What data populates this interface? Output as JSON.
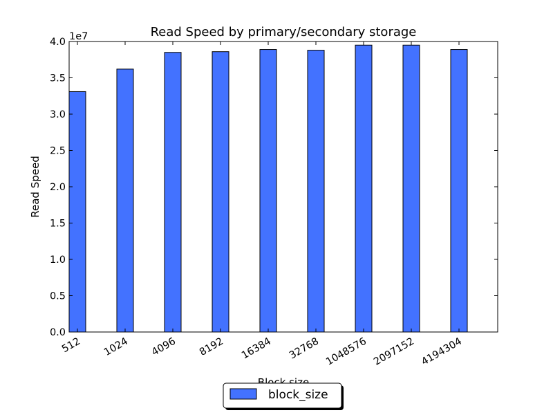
{
  "chart_data": {
    "type": "bar",
    "title": "Read Speed by primary/secondary storage",
    "xlabel": "Block size",
    "ylabel": "Read Speed",
    "y_offset_label": "1e7",
    "categories": [
      "512",
      "1024",
      "4096",
      "8192",
      "16384",
      "32768",
      "1048576",
      "2097152",
      "4194304"
    ],
    "series": [
      {
        "name": "block_size",
        "values": [
          33100000,
          36200000,
          38500000,
          38600000,
          38900000,
          38800000,
          39500000,
          39500000,
          38900000
        ]
      }
    ],
    "ylim": [
      0,
      40000000
    ],
    "yticks": [
      "0.0",
      "0.5",
      "1.0",
      "1.5",
      "2.0",
      "2.5",
      "3.0",
      "3.5",
      "4.0"
    ],
    "grid": false,
    "legend_position": "bottom-center",
    "colors": {
      "bar": "#4372ff",
      "edge": "#000000"
    }
  }
}
